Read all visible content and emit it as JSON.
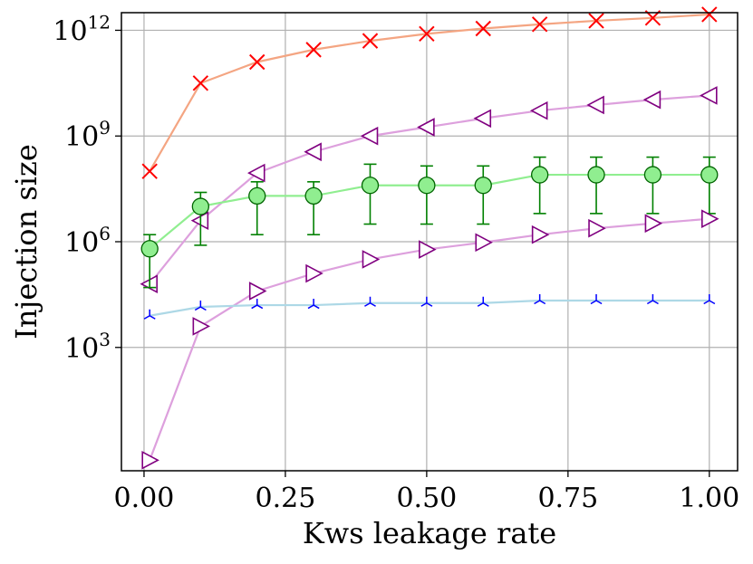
{
  "chart_data": {
    "type": "line",
    "title": "",
    "xlabel": "Kws leakage rate",
    "ylabel": "Injection size",
    "xlim": [
      -0.04,
      1.05
    ],
    "ylim_log10": [
      -0.5,
      12.5
    ],
    "yscale": "log",
    "grid": true,
    "x_ticks": [
      0.0,
      0.25,
      0.5,
      0.75,
      1.0
    ],
    "x_tick_labels": [
      "0.00",
      "0.25",
      "0.50",
      "0.75",
      "1.00"
    ],
    "y_ticks_log10": [
      3,
      6,
      9,
      12
    ],
    "y_tick_labels": [
      {
        "base": "10",
        "exp": "3"
      },
      {
        "base": "10",
        "exp": "6"
      },
      {
        "base": "10",
        "exp": "9"
      },
      {
        "base": "10",
        "exp": "12"
      }
    ],
    "x": [
      0.01,
      0.1,
      0.2,
      0.3,
      0.4,
      0.5,
      0.6,
      0.7,
      0.8,
      0.9,
      1.0
    ],
    "series": [
      {
        "name": "series-x",
        "line_color": "#f4a582",
        "marker": "x",
        "marker_color": "#ff0000",
        "log10_values": [
          8.0,
          10.5,
          11.1,
          11.45,
          11.7,
          11.9,
          12.05,
          12.17,
          12.27,
          12.35,
          12.45
        ]
      },
      {
        "name": "series-left-triangle",
        "line_color": "#dda0dd",
        "marker": "triangle-left",
        "marker_color": "#800080",
        "log10_values": [
          4.8,
          6.6,
          7.95,
          8.55,
          9.0,
          9.25,
          9.5,
          9.72,
          9.88,
          10.03,
          10.15
        ]
      },
      {
        "name": "series-circle",
        "line_color": "#90ee90",
        "marker": "circle",
        "marker_color": "#006400",
        "marker_fill": "#90ee90",
        "log10_values": [
          5.8,
          7.0,
          7.3,
          7.3,
          7.6,
          7.6,
          7.6,
          7.9,
          7.9,
          7.9,
          7.9
        ],
        "err_low_log10": [
          4.7,
          5.9,
          6.2,
          6.2,
          6.5,
          6.5,
          6.5,
          6.8,
          6.8,
          6.8,
          6.8
        ],
        "err_high_log10": [
          6.2,
          7.4,
          7.7,
          7.7,
          8.2,
          8.15,
          8.15,
          8.4,
          8.4,
          8.4,
          8.4
        ],
        "err_color": "#008000"
      },
      {
        "name": "series-right-triangle",
        "line_color": "#dda0dd",
        "marker": "triangle-right",
        "marker_color": "#800080",
        "log10_values": [
          -0.2,
          3.6,
          4.6,
          5.1,
          5.5,
          5.78,
          5.98,
          6.2,
          6.38,
          6.52,
          6.65
        ]
      },
      {
        "name": "series-tri-down",
        "line_color": "#add8e6",
        "marker": "tri-down",
        "marker_color": "#0000ff",
        "log10_values": [
          3.9,
          4.15,
          4.2,
          4.2,
          4.26,
          4.26,
          4.26,
          4.33,
          4.33,
          4.33,
          4.33
        ]
      }
    ]
  }
}
